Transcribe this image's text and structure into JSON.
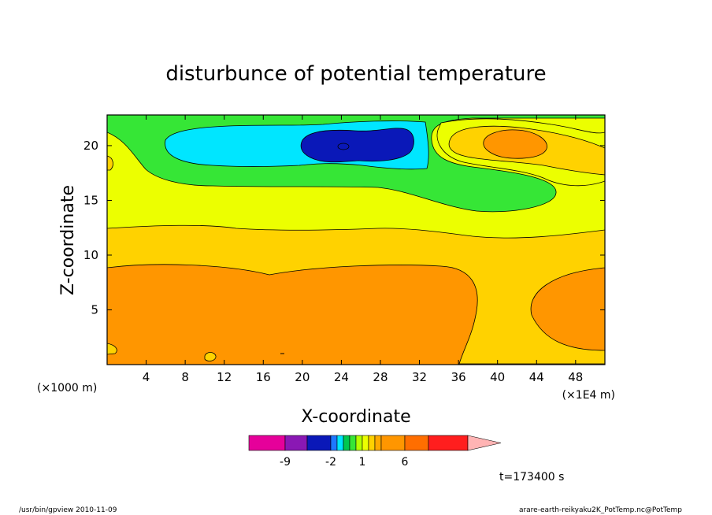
{
  "chart_data": {
    "type": "heatmap",
    "title": "disturbunce of potential temperature",
    "xlabel": "X-coordinate",
    "ylabel": "Z-coordinate",
    "x_unit_left": "(×1000 m)",
    "x_unit_right": "(×1E4 m)",
    "xlim": [
      0,
      51
    ],
    "ylim": [
      0,
      22.8
    ],
    "x_ticks": [
      4,
      8,
      12,
      16,
      20,
      24,
      28,
      32,
      36,
      40,
      44,
      48
    ],
    "y_ticks": [
      5,
      10,
      15,
      20
    ],
    "colorbar": {
      "levels": [
        -12,
        -9,
        -6,
        -2,
        -1,
        -0.5,
        0,
        0.5,
        1,
        1.5,
        2,
        3,
        6,
        9,
        12
      ],
      "colors": [
        "#e6009a",
        "#8a18b4",
        "#0a18b8",
        "#1e78ff",
        "#00e6ff",
        "#00c850",
        "#36e636",
        "#b4ff00",
        "#ecff00",
        "#ffd200",
        "#ffaa00",
        "#ff9600",
        "#ff6e00",
        "#ff1e1e",
        "#ff7878",
        "#ffb4b4"
      ],
      "tick_labels": [
        "-9",
        "-2",
        "1",
        "6"
      ]
    },
    "regions": [
      {
        "name": "orange band",
        "approx_value": "2–3",
        "x_range": [
          0,
          51
        ],
        "z_range": [
          0,
          9
        ]
      },
      {
        "name": "yellow-orange band",
        "approx_value": "1.5–2",
        "z_range": [
          9,
          12.5
        ]
      },
      {
        "name": "yellow band",
        "approx_value": "1–1.5",
        "z_range": [
          12.5,
          17
        ]
      },
      {
        "name": "green area",
        "approx_value": "-0.5–0",
        "x_range": [
          0,
          46
        ],
        "z_range": [
          15.5,
          22.8
        ]
      },
      {
        "name": "cyan area",
        "approx_value": "-1–-0.5",
        "x_range": [
          6,
          33
        ],
        "z_range": [
          18,
          21.8
        ]
      },
      {
        "name": "blue core",
        "approx_value": "-2–-1",
        "x_range": [
          20,
          31
        ],
        "z_range": [
          18.8,
          21.6
        ],
        "center": [
          24.2,
          20
        ]
      },
      {
        "name": "orange warm core",
        "approx_value": "2–3",
        "x_range": [
          37,
          45
        ],
        "z_range": [
          19.5,
          21.8
        ]
      }
    ]
  },
  "time_label": "t=173400 s",
  "footer": {
    "left": "/usr/bin/gpview   2010-11-09",
    "right": "arare-earth-reikyaku2K_PotTemp.nc@PotTemp"
  }
}
